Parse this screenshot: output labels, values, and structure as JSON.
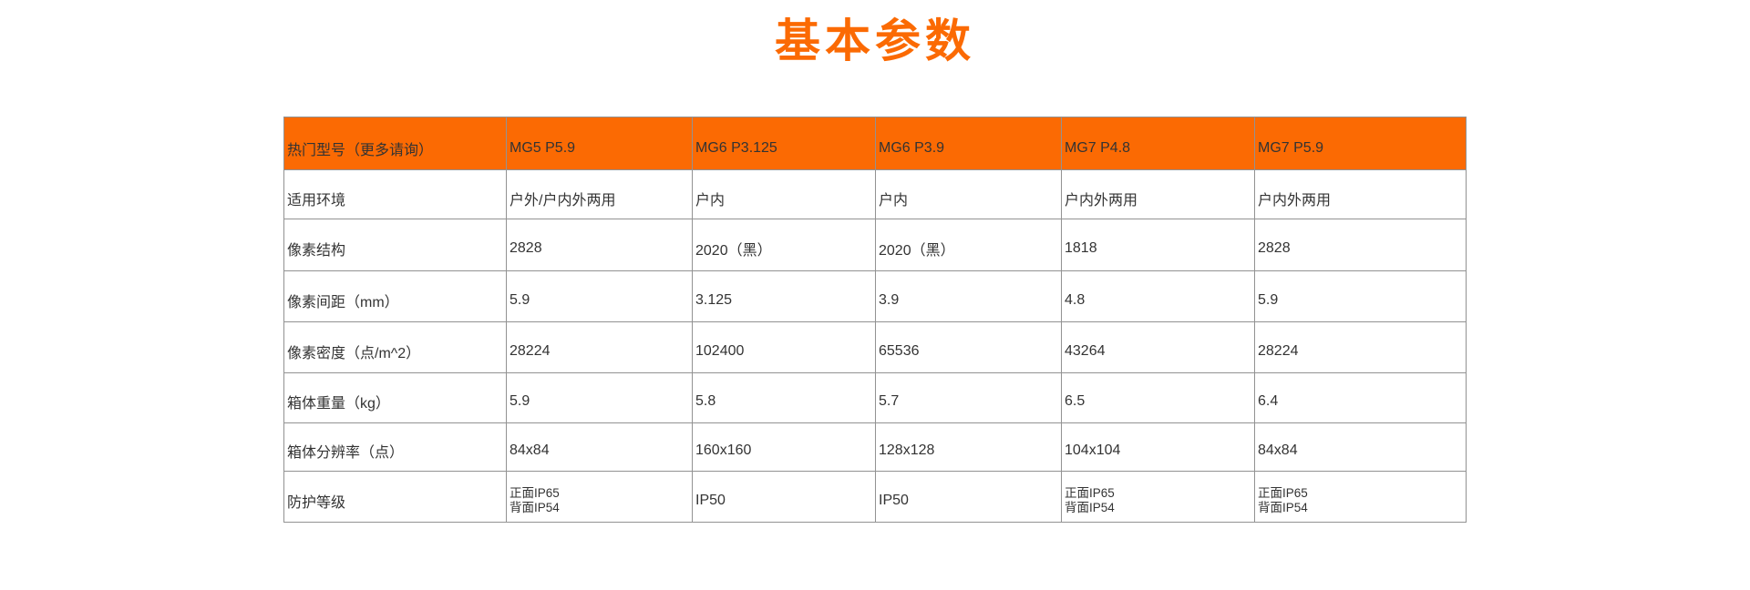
{
  "page": {
    "title": "基本参数"
  },
  "colors": {
    "accent_orange": "#fb6a03",
    "header_bg": "#fb6a03",
    "text": "#333333",
    "grid_line": "#929292",
    "background": "#ffffff"
  },
  "table": {
    "header": {
      "label": "热门型号（更多请询）",
      "models": [
        "MG5 P5.9",
        "MG6 P3.125",
        "MG6 P3.9",
        "MG7 P4.8",
        "MG7 P5.9"
      ]
    },
    "rows": [
      {
        "label": "适用环境",
        "cells": [
          "户外/户内外两用",
          "户内",
          "户内",
          "户内外两用",
          "户内外两用"
        ]
      },
      {
        "label": "像素结构",
        "cells": [
          "2828",
          "2020（黑）",
          "2020（黑）",
          "1818",
          "2828"
        ]
      },
      {
        "label": "像素间距（mm）",
        "cells": [
          "5.9",
          "3.125",
          "3.9",
          "4.8",
          "5.9"
        ]
      },
      {
        "label": "像素密度（点/m^2）",
        "cells": [
          "28224",
          "102400",
          "65536",
          "43264",
          "28224"
        ]
      },
      {
        "label": "箱体重量（kg）",
        "cells": [
          "5.9",
          "5.8",
          "5.7",
          "6.5",
          "6.4"
        ]
      },
      {
        "label": "箱体分辨率（点）",
        "cells": [
          "84x84",
          "160x160",
          "128x128",
          "104x104",
          "84x84"
        ]
      },
      {
        "label": "防护等级",
        "cells": [
          "正面IP65\n背面IP54",
          "IP50",
          "IP50",
          "正面IP65\n背面IP54",
          "正面IP65\n背面IP54"
        ]
      }
    ]
  }
}
